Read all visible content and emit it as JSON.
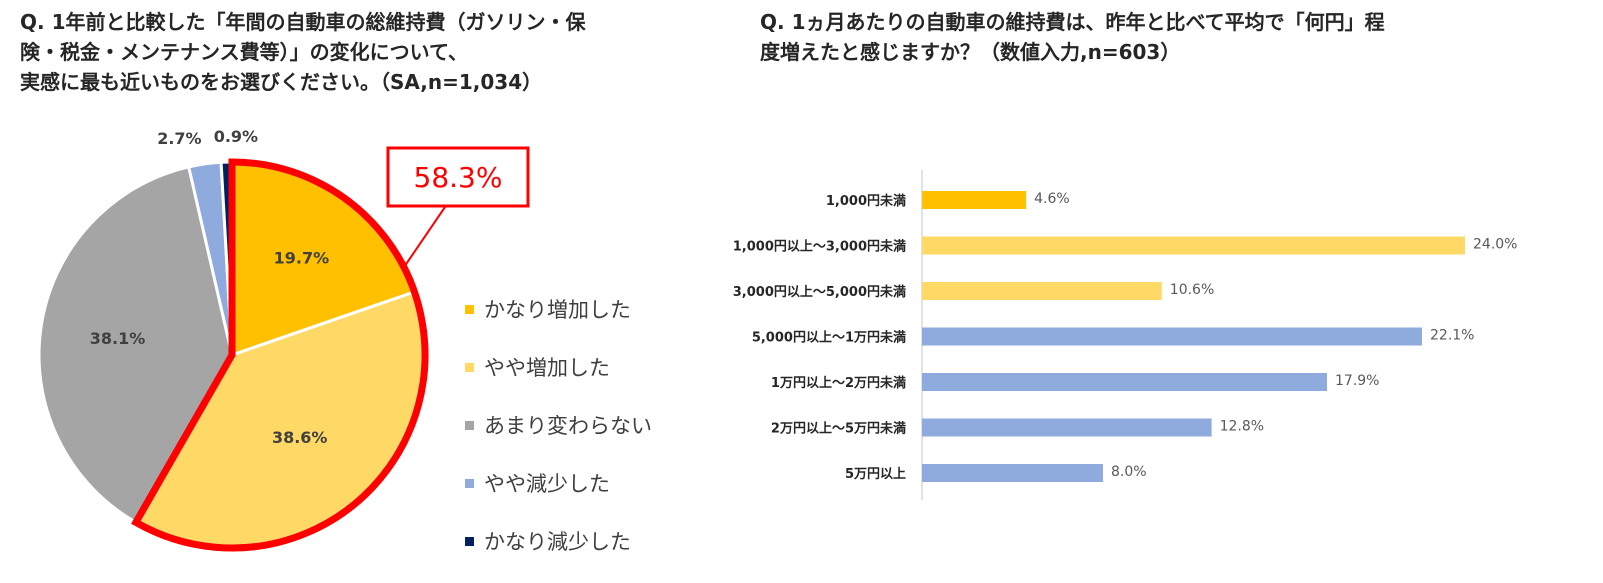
{
  "q1": {
    "title": "Q. 1年前と比較した「年間の自動車の総維持費（ガソリン・保\n険・税金・メンテナンス費等）」の変化について、\n実感に最も近いものをお選びください。（SA,n=1,034）"
  },
  "q2": {
    "title": "Q. 1ヵ月あたりの自動車の維持費は、昨年と比べて平均で「何円」程\n度増えたと感じますか？（数値入力,n=603）"
  },
  "chart_data": [
    {
      "type": "pie",
      "slices": [
        {
          "name": "かなり増加した",
          "value": 19.7,
          "label": "19.7%",
          "color": "#FFC000"
        },
        {
          "name": "やや増加した",
          "value": 38.6,
          "label": "38.6%",
          "color": "#FFD966"
        },
        {
          "name": "あまり変わらない",
          "value": 38.1,
          "label": "38.1%",
          "color": "#A5A5A5"
        },
        {
          "name": "やや減少した",
          "value": 2.7,
          "label": "2.7%",
          "color": "#8FAADC"
        },
        {
          "name": "かなり減少した",
          "value": 0.9,
          "label": "0.9%",
          "color": "#002060"
        }
      ],
      "callout": {
        "label": "58.3%",
        "value": 58.3,
        "color": "#FF0000"
      },
      "legend_position": "right"
    },
    {
      "type": "bar",
      "orientation": "horizontal",
      "categories": [
        "1,000円未満",
        "1,000円以上～3,000円未満",
        "3,000円以上～5,000円未満",
        "5,000円以上～1万円未満",
        "1万円以上～2万円未満",
        "2万円以上～5万円未満",
        "5万円以上"
      ],
      "values": [
        4.6,
        24.0,
        10.6,
        22.1,
        17.9,
        12.8,
        8.0
      ],
      "value_labels": [
        "4.6%",
        "24.0%",
        "10.6%",
        "22.1%",
        "17.9%",
        "12.8%",
        "8.0%"
      ],
      "colors": [
        "#FFC000",
        "#FFD966",
        "#FFD966",
        "#8FAADC",
        "#8FAADC",
        "#8FAADC",
        "#8FAADC"
      ],
      "xlim": [
        0,
        24.0
      ],
      "grid": false
    }
  ]
}
